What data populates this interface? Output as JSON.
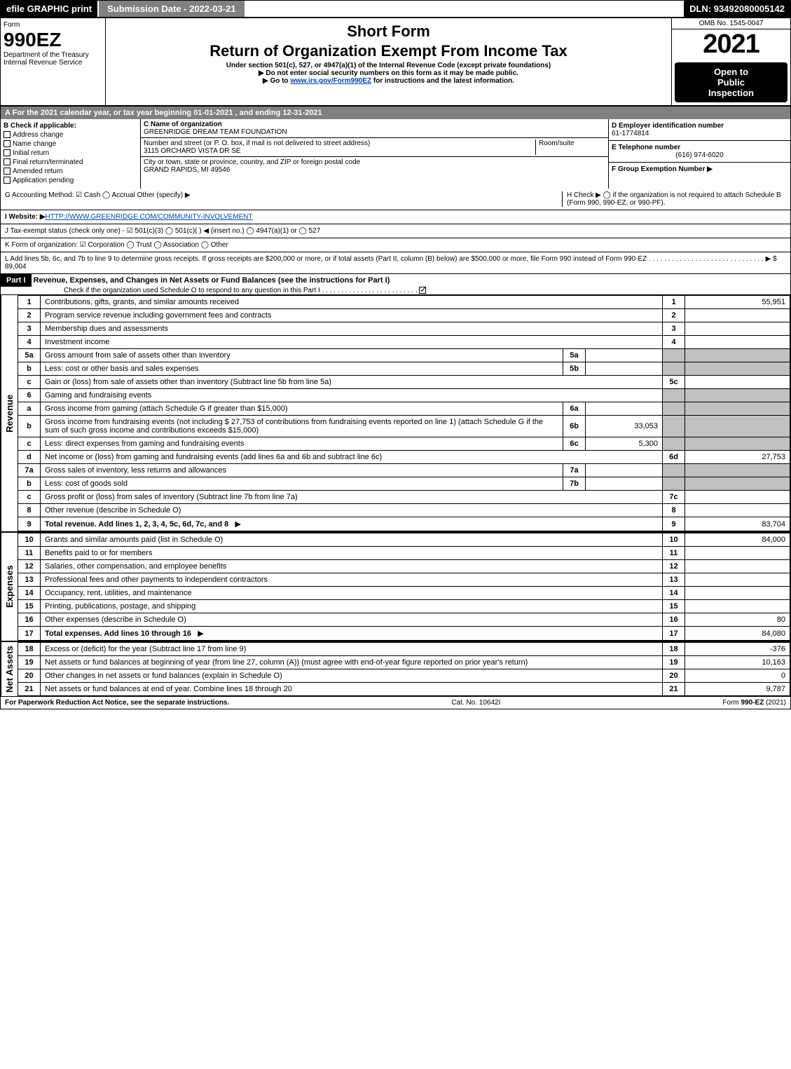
{
  "topbar": {
    "efile": "efile GRAPHIC print",
    "submission": "Submission Date - 2022-03-21",
    "dln": "DLN: 93492080005142"
  },
  "header": {
    "form_word": "Form",
    "form_no": "990EZ",
    "dept1": "Department of the Treasury",
    "dept2": "Internal Revenue Service",
    "title1": "Short Form",
    "title2": "Return of Organization Exempt From Income Tax",
    "sub1": "Under section 501(c), 527, or 4947(a)(1) of the Internal Revenue Code (except private foundations)",
    "sub2": "▶ Do not enter social security numbers on this form as it may be made public.",
    "sub3": "▶ Go to www.irs.gov/Form990EZ for instructions and the latest information.",
    "omb": "OMB No. 1545-0047",
    "year": "2021",
    "open1": "Open to",
    "open2": "Public",
    "open3": "Inspection"
  },
  "sectionA": "A  For the 2021 calendar year, or tax year beginning 01-01-2021 , and ending 12-31-2021",
  "sectionB": {
    "label": "B  Check if applicable:",
    "opts": [
      "Address change",
      "Name change",
      "Initial return",
      "Final return/terminated",
      "Amended return",
      "Application pending"
    ]
  },
  "sectionC": {
    "name_label": "C Name of organization",
    "name": "GREENRIDGE DREAM TEAM FOUNDATION",
    "addr_label": "Number and street (or P. O. box, if mail is not delivered to street address)",
    "room_label": "Room/suite",
    "addr": "3115 ORCHARD VISTA DR SE",
    "city_label": "City or town, state or province, country, and ZIP or foreign postal code",
    "city": "GRAND RAPIDS, MI  49546"
  },
  "sectionD": {
    "label": "D Employer identification number",
    "value": "61-1774814"
  },
  "sectionE": {
    "label": "E Telephone number",
    "value": "(616) 974-6020"
  },
  "sectionF": {
    "label": "F Group Exemption Number  ▶"
  },
  "sectionG": "G Accounting Method:   ☑ Cash  ◯ Accrual   Other (specify) ▶",
  "sectionH": "H  Check ▶  ◯ if the organization is not required to attach Schedule B (Form 990, 990-EZ, or 990-PF).",
  "sectionI": "I Website: ▶HTTP://WWW.GREENRIDGE.COM/COMMUNITY-INVOLVEMENT",
  "sectionJ": "J Tax-exempt status (check only one) - ☑ 501(c)(3) ◯ 501(c)( ) ◀ (insert no.) ◯ 4947(a)(1) or ◯ 527",
  "sectionK": "K Form of organization:  ☑ Corporation  ◯ Trust  ◯ Association  ◯ Other",
  "sectionL": {
    "text": "L Add lines 5b, 6c, and 7b to line 9 to determine gross receipts. If gross receipts are $200,000 or more, or if total assets (Part II, column (B) below) are $500,000 or more, file Form 990 instead of Form 990-EZ . . . . . . . . . . . . . . . . . . . . . . . . . . . . . .  ▶",
    "amount": "$ 89,004"
  },
  "partI": {
    "label": "Part I",
    "title": "Revenue, Expenses, and Changes in Net Assets or Fund Balances (see the instructions for Part I)",
    "check_text": "Check if the organization used Schedule O to respond to any question in this Part I . . . . . . . . . . . . . . . . . . . . . . . . .",
    "checkmark": "☑"
  },
  "side_labels": {
    "revenue": "Revenue",
    "expenses": "Expenses",
    "netassets": "Net Assets"
  },
  "revenue_lines": [
    {
      "n": "1",
      "desc": "Contributions, gifts, grants, and similar amounts received",
      "ln": "1",
      "amt": "55,951"
    },
    {
      "n": "2",
      "desc": "Program service revenue including government fees and contracts",
      "ln": "2",
      "amt": ""
    },
    {
      "n": "3",
      "desc": "Membership dues and assessments",
      "ln": "3",
      "amt": ""
    },
    {
      "n": "4",
      "desc": "Investment income",
      "ln": "4",
      "amt": ""
    },
    {
      "n": "5a",
      "desc": "Gross amount from sale of assets other than inventory",
      "sub": "5a",
      "subval": "",
      "grey": true
    },
    {
      "n": "b",
      "desc": "Less: cost or other basis and sales expenses",
      "sub": "5b",
      "subval": "",
      "grey": true
    },
    {
      "n": "c",
      "desc": "Gain or (loss) from sale of assets other than inventory (Subtract line 5b from line 5a)",
      "ln": "5c",
      "amt": ""
    },
    {
      "n": "6",
      "desc": "Gaming and fundraising events",
      "greyrow": true
    },
    {
      "n": "a",
      "desc": "Gross income from gaming (attach Schedule G if greater than $15,000)",
      "sub": "6a",
      "subval": "",
      "grey": true
    },
    {
      "n": "b",
      "desc": "Gross income from fundraising events (not including $ 27,753 of contributions from fundraising events reported on line 1) (attach Schedule G if the sum of such gross income and contributions exceeds $15,000)",
      "sub": "6b",
      "subval": "33,053",
      "grey": true
    },
    {
      "n": "c",
      "desc": "Less: direct expenses from gaming and fundraising events",
      "sub": "6c",
      "subval": "5,300",
      "grey": true
    },
    {
      "n": "d",
      "desc": "Net income or (loss) from gaming and fundraising events (add lines 6a and 6b and subtract line 6c)",
      "ln": "6d",
      "amt": "27,753"
    },
    {
      "n": "7a",
      "desc": "Gross sales of inventory, less returns and allowances",
      "sub": "7a",
      "subval": "",
      "grey": true
    },
    {
      "n": "b",
      "desc": "Less: cost of goods sold",
      "sub": "7b",
      "subval": "",
      "grey": true
    },
    {
      "n": "c",
      "desc": "Gross profit or (loss) from sales of inventory (Subtract line 7b from line 7a)",
      "ln": "7c",
      "amt": ""
    },
    {
      "n": "8",
      "desc": "Other revenue (describe in Schedule O)",
      "ln": "8",
      "amt": ""
    },
    {
      "n": "9",
      "desc": "Total revenue. Add lines 1, 2, 3, 4, 5c, 6d, 7c, and 8",
      "ln": "9",
      "amt": "83,704",
      "bold": true,
      "arrow": "▶"
    }
  ],
  "expense_lines": [
    {
      "n": "10",
      "desc": "Grants and similar amounts paid (list in Schedule O)",
      "ln": "10",
      "amt": "84,000"
    },
    {
      "n": "11",
      "desc": "Benefits paid to or for members",
      "ln": "11",
      "amt": ""
    },
    {
      "n": "12",
      "desc": "Salaries, other compensation, and employee benefits",
      "ln": "12",
      "amt": ""
    },
    {
      "n": "13",
      "desc": "Professional fees and other payments to independent contractors",
      "ln": "13",
      "amt": ""
    },
    {
      "n": "14",
      "desc": "Occupancy, rent, utilities, and maintenance",
      "ln": "14",
      "amt": ""
    },
    {
      "n": "15",
      "desc": "Printing, publications, postage, and shipping",
      "ln": "15",
      "amt": ""
    },
    {
      "n": "16",
      "desc": "Other expenses (describe in Schedule O)",
      "ln": "16",
      "amt": "80"
    },
    {
      "n": "17",
      "desc": "Total expenses. Add lines 10 through 16",
      "ln": "17",
      "amt": "84,080",
      "bold": true,
      "arrow": "▶"
    }
  ],
  "netasset_lines": [
    {
      "n": "18",
      "desc": "Excess or (deficit) for the year (Subtract line 17 from line 9)",
      "ln": "18",
      "amt": "-376"
    },
    {
      "n": "19",
      "desc": "Net assets or fund balances at beginning of year (from line 27, column (A)) (must agree with end-of-year figure reported on prior year's return)",
      "ln": "19",
      "amt": "10,163"
    },
    {
      "n": "20",
      "desc": "Other changes in net assets or fund balances (explain in Schedule O)",
      "ln": "20",
      "amt": "0"
    },
    {
      "n": "21",
      "desc": "Net assets or fund balances at end of year. Combine lines 18 through 20",
      "ln": "21",
      "amt": "9,787"
    }
  ],
  "footer": {
    "left": "For Paperwork Reduction Act Notice, see the separate instructions.",
    "mid": "Cat. No. 10642I",
    "right": "Form 990-EZ (2021)"
  },
  "colors": {
    "header_grey": "#808080",
    "row_grey": "#c0c0c0",
    "link": "#0047b3"
  }
}
